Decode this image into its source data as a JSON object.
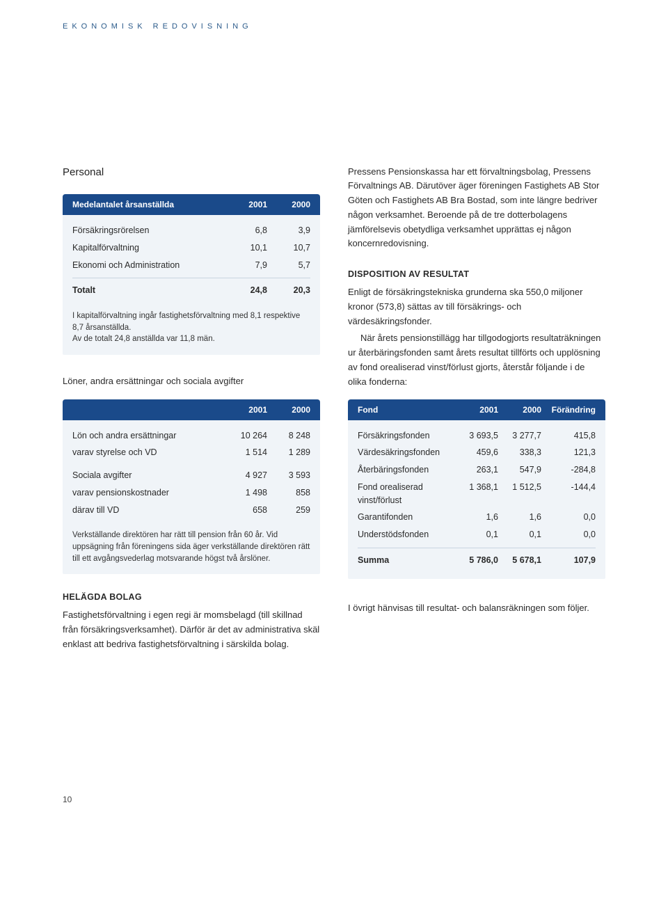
{
  "colors": {
    "header_blue": "#2a5a8a",
    "table_header_bg": "#1a4a8a",
    "table_bg": "#f0f4f8",
    "text": "#2a2a2a",
    "rule": "#c8d4e0"
  },
  "header": "EKONOMISK REDOVISNING",
  "left": {
    "personal_title": "Personal",
    "table1": {
      "header_label": "Medelantalet årsanställda",
      "col1": "2001",
      "col2": "2000",
      "rows": [
        {
          "label": "Försäkringsrörelsen",
          "c1": "6,8",
          "c2": "3,9"
        },
        {
          "label": "Kapitalförvaltning",
          "c1": "10,1",
          "c2": "10,7"
        },
        {
          "label": "Ekonomi och Administration",
          "c1": "7,9",
          "c2": "5,7"
        }
      ],
      "total": {
        "label": "Totalt",
        "c1": "24,8",
        "c2": "20,3"
      },
      "note1": "I kapitalförvaltning ingår fastighetsförvaltning med 8,1 respektive 8,7 årsanställda.",
      "note2": "Av de totalt 24,8 anställda var 11,8 män."
    },
    "table2_title": "Löner, andra ersättningar och sociala avgifter",
    "table2": {
      "col1": "2001",
      "col2": "2000",
      "rows_group1": [
        {
          "label": "Lön och andra ersättningar",
          "c1": "10 264",
          "c2": "8 248"
        },
        {
          "label": "varav styrelse och VD",
          "c1": "1 514",
          "c2": "1 289"
        }
      ],
      "rows_group2": [
        {
          "label": "Sociala avgifter",
          "c1": "4 927",
          "c2": "3 593"
        },
        {
          "label": "varav pensionskostnader",
          "c1": "1 498",
          "c2": "858"
        },
        {
          "label": "därav till VD",
          "c1": "658",
          "c2": "259"
        }
      ],
      "note": "Verkställande direktören har rätt till pension från 60 år. Vid uppsägning från föreningens sida äger verkställande direktören rätt till ett avgångsvederlag motsvarande högst två årslöner."
    },
    "helagda_title": "HELÄGDA BOLAG",
    "helagda_body": "Fastighetsförvaltning i egen regi är momsbelagd (till skillnad från försäkringsverksamhet). Därför är det av administrativa skäl enklast att bedriva fastighetsförvaltning i särskilda bolag."
  },
  "right": {
    "p1": "Pressens Pensionskassa har ett förvaltningsbolag, Pressens Förvaltnings AB. Därutöver äger föreningen Fastighets AB Stor Göten och Fastighets AB Bra Bostad, som inte längre bedriver någon verksamhet. Beroende på de tre dotterbolagens jämförelsevis obetydliga verksamhet upprättas ej någon koncernredovisning.",
    "disposition_title": "DISPOSITION AV RESULTAT",
    "p2": "Enligt de försäkringstekniska grunderna ska 550,0 miljoner kronor (573,8) sättas av till försäkrings- och värdesäkringsfonder.",
    "p3": "När årets pensionstillägg har tillgodogjorts resultaträkningen ur återbäringsfonden samt årets resultat tillförts och upplösning av fond orealiserad vinst/förlust gjorts, återstår följande i de olika fonderna:",
    "table3": {
      "header_label": "Fond",
      "col1": "2001",
      "col2": "2000",
      "col3": "Förändring",
      "rows": [
        {
          "label": "Försäkringsfonden",
          "c1": "3 693,5",
          "c2": "3 277,7",
          "c3": "415,8"
        },
        {
          "label": "Värdesäkringsfonden",
          "c1": "459,6",
          "c2": "338,3",
          "c3": "121,3"
        },
        {
          "label": "Återbäringsfonden",
          "c1": "263,1",
          "c2": "547,9",
          "c3": "-284,8"
        },
        {
          "label": "Fond orealiserad vinst/förlust",
          "c1": "1 368,1",
          "c2": "1 512,5",
          "c3": "-144,4"
        },
        {
          "label": "Garantifonden",
          "c1": "1,6",
          "c2": "1,6",
          "c3": "0,0"
        },
        {
          "label": "Understödsfonden",
          "c1": "0,1",
          "c2": "0,1",
          "c3": "0,0"
        }
      ],
      "total": {
        "label": "Summa",
        "c1": "5 786,0",
        "c2": "5 678,1",
        "c3": "107,9"
      }
    },
    "p4": "I övrigt hänvisas till resultat- och balansräkningen som följer."
  },
  "page_number": "10"
}
